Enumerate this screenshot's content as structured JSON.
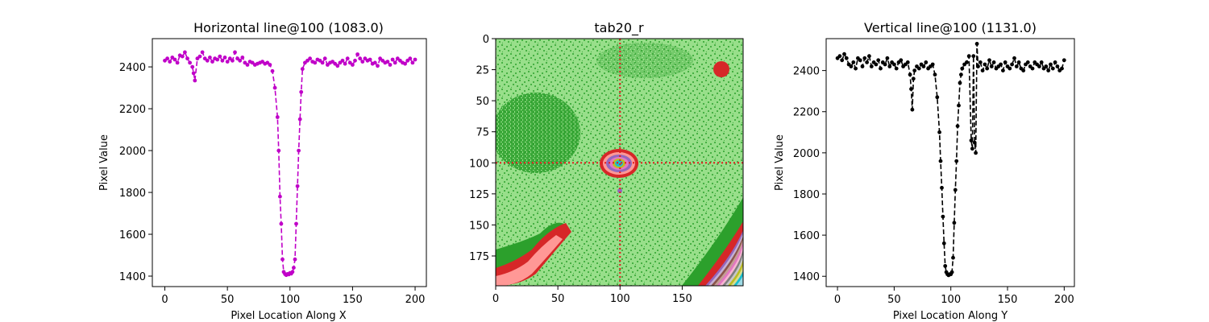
{
  "chart_data": [
    {
      "type": "line",
      "title": "Horizontal line@100 (1083.0)",
      "xlabel": "Pixel Location Along X",
      "ylabel": "Pixel Value",
      "xlim": [
        -10,
        209
      ],
      "ylim": [
        1350,
        2535
      ],
      "xticks": [
        0,
        50,
        100,
        150,
        200
      ],
      "yticks": [
        1400,
        1600,
        1800,
        2000,
        2200,
        2400
      ],
      "line_style": "dashed",
      "marker": "dot",
      "color": "#c000c8",
      "series": [
        {
          "x": [
            0,
            2,
            4,
            6,
            8,
            10,
            12,
            14,
            16,
            18,
            20,
            22,
            23,
            24,
            26,
            28,
            30,
            32,
            34,
            36,
            38,
            40,
            42,
            44,
            46,
            48,
            50,
            52,
            54,
            56,
            58,
            60,
            62,
            64,
            66,
            68,
            70,
            72,
            74,
            76,
            78,
            80,
            82,
            84,
            86,
            88,
            90,
            91,
            92,
            93,
            94,
            95,
            96,
            97,
            98,
            99,
            100,
            101,
            102,
            103,
            104,
            105,
            106,
            107,
            108,
            109,
            110,
            112,
            114,
            116,
            118,
            120,
            122,
            124,
            126,
            128,
            130,
            132,
            134,
            136,
            138,
            140,
            142,
            144,
            146,
            148,
            150,
            152,
            154,
            156,
            158,
            160,
            162,
            164,
            166,
            168,
            170,
            172,
            174,
            176,
            178,
            180,
            182,
            184,
            186,
            188,
            190,
            192,
            194,
            196,
            198,
            200
          ],
          "y": [
            2430,
            2440,
            2425,
            2445,
            2435,
            2420,
            2455,
            2450,
            2470,
            2440,
            2420,
            2400,
            2370,
            2335,
            2440,
            2450,
            2470,
            2440,
            2430,
            2445,
            2425,
            2440,
            2435,
            2450,
            2430,
            2445,
            2425,
            2440,
            2430,
            2470,
            2440,
            2430,
            2445,
            2420,
            2410,
            2425,
            2420,
            2410,
            2415,
            2420,
            2425,
            2415,
            2420,
            2410,
            2380,
            2300,
            2160,
            2000,
            1780,
            1650,
            1480,
            1420,
            1410,
            1405,
            1410,
            1408,
            1415,
            1412,
            1420,
            1440,
            1480,
            1650,
            1830,
            2000,
            2150,
            2280,
            2390,
            2420,
            2430,
            2440,
            2425,
            2420,
            2435,
            2430,
            2420,
            2440,
            2410,
            2420,
            2425,
            2415,
            2405,
            2420,
            2430,
            2415,
            2440,
            2420,
            2410,
            2430,
            2460,
            2440,
            2425,
            2440,
            2430,
            2435,
            2415,
            2420,
            2405,
            2440,
            2430,
            2420,
            2425,
            2410,
            2435,
            2420,
            2440,
            2430,
            2420,
            2415,
            2430,
            2440,
            2420,
            2435
          ]
        }
      ]
    },
    {
      "type": "heatmap",
      "title": "tab20_r",
      "colormap": "tab20_r",
      "xlim": [
        0,
        199
      ],
      "ylim": [
        199,
        0
      ],
      "xticks": [
        0,
        50,
        100,
        150
      ],
      "yticks": [
        0,
        25,
        50,
        75,
        100,
        125,
        150,
        175
      ],
      "crosshair": {
        "x": 100,
        "y": 100,
        "color": "#e31a1c",
        "style": "dotted"
      },
      "colors": {
        "background": "#98df8a",
        "noise": "#2ca02c",
        "high": "#d62728",
        "higher": "#ff9896",
        "bands": [
          "#9467bd",
          "#c5b0d5",
          "#8c564b",
          "#c49c94",
          "#e377c2",
          "#f7b6d2",
          "#7f7f7f",
          "#c7c7c7",
          "#bcbd22",
          "#dbdb8d",
          "#17becf",
          "#9edae5"
        ]
      }
    },
    {
      "type": "line",
      "title": "Vertical line@100 (1131.0)",
      "xlabel": "Pixel Location Along Y",
      "ylabel": "Pixel Value",
      "xlim": [
        -10,
        209
      ],
      "ylim": [
        1350,
        2555
      ],
      "xticks": [
        0,
        50,
        100,
        150,
        200
      ],
      "yticks": [
        1400,
        1600,
        1800,
        2000,
        2200,
        2400
      ],
      "line_style": "dashed",
      "marker": "dot",
      "color": "#000000",
      "series": [
        {
          "x": [
            0,
            2,
            4,
            6,
            8,
            10,
            12,
            14,
            16,
            18,
            20,
            22,
            24,
            26,
            28,
            30,
            32,
            34,
            36,
            38,
            40,
            42,
            44,
            46,
            48,
            50,
            52,
            54,
            56,
            58,
            60,
            62,
            64,
            65,
            66,
            67,
            68,
            70,
            72,
            74,
            76,
            78,
            80,
            82,
            84,
            86,
            88,
            90,
            91,
            92,
            93,
            94,
            95,
            96,
            97,
            98,
            99,
            100,
            101,
            102,
            103,
            104,
            105,
            106,
            107,
            108,
            109,
            110,
            112,
            114,
            116,
            118,
            119,
            120,
            121,
            122,
            123,
            124,
            126,
            128,
            130,
            132,
            134,
            136,
            138,
            140,
            142,
            144,
            146,
            148,
            150,
            152,
            154,
            156,
            158,
            160,
            162,
            164,
            166,
            168,
            170,
            172,
            174,
            176,
            178,
            180,
            182,
            184,
            186,
            188,
            190,
            192,
            194,
            196,
            198,
            200
          ],
          "y": [
            2460,
            2470,
            2450,
            2480,
            2460,
            2430,
            2420,
            2440,
            2410,
            2460,
            2450,
            2420,
            2460,
            2440,
            2470,
            2420,
            2440,
            2430,
            2450,
            2410,
            2440,
            2430,
            2460,
            2420,
            2440,
            2430,
            2410,
            2440,
            2450,
            2420,
            2430,
            2440,
            2380,
            2310,
            2210,
            2360,
            2400,
            2420,
            2410,
            2430,
            2420,
            2440,
            2410,
            2420,
            2430,
            2380,
            2270,
            2100,
            1960,
            1830,
            1690,
            1560,
            1450,
            1420,
            1410,
            1405,
            1410,
            1410,
            1420,
            1490,
            1660,
            1820,
            1960,
            2130,
            2230,
            2340,
            2380,
            2410,
            2430,
            2440,
            2470,
            2060,
            2020,
            2470,
            2050,
            2000,
            2530,
            2420,
            2440,
            2400,
            2430,
            2410,
            2450,
            2420,
            2440,
            2410,
            2420,
            2430,
            2400,
            2440,
            2420,
            2410,
            2430,
            2460,
            2420,
            2440,
            2410,
            2400,
            2430,
            2440,
            2420,
            2410,
            2440,
            2430,
            2420,
            2440,
            2410,
            2420,
            2400,
            2430,
            2410,
            2440,
            2420,
            2400,
            2410,
            2450
          ]
        }
      ]
    }
  ]
}
